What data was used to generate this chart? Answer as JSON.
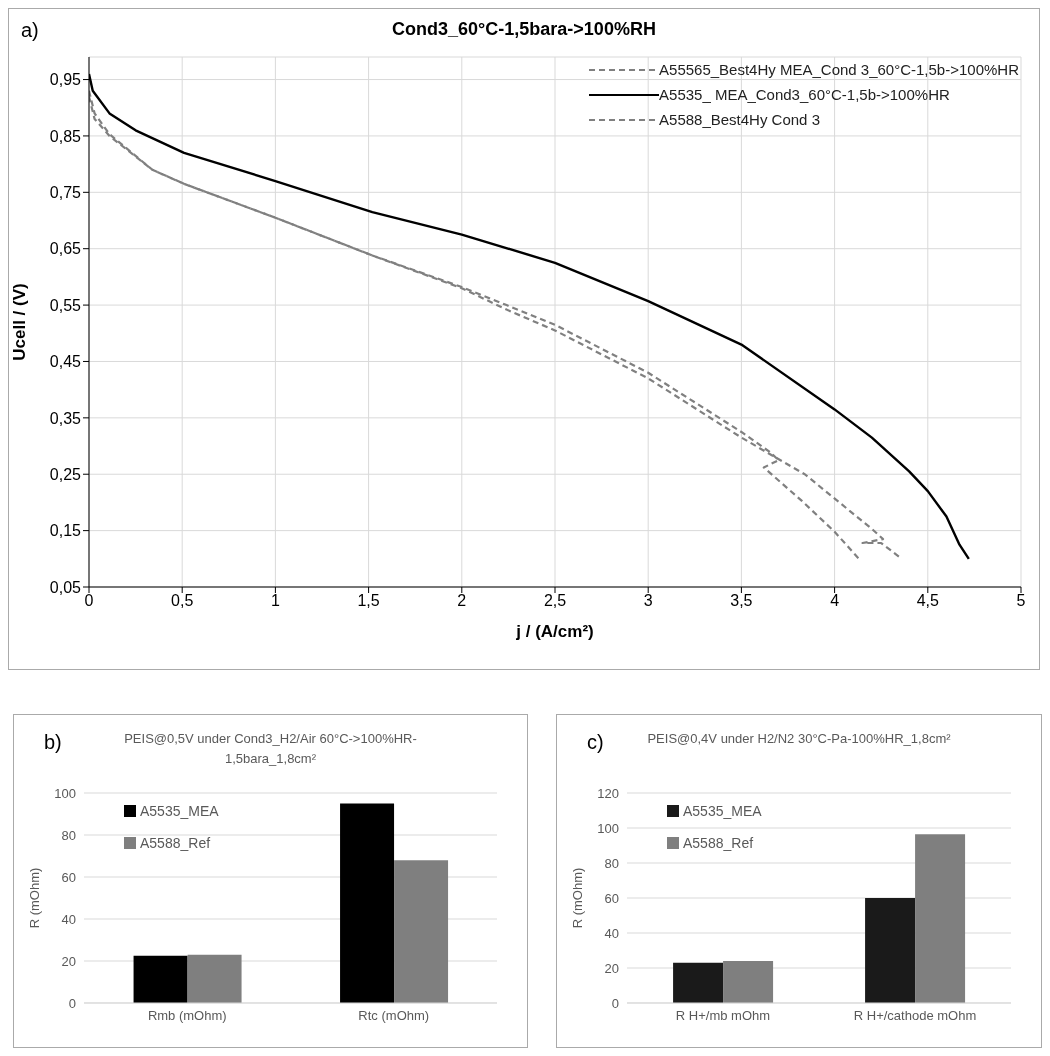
{
  "chart_data": [
    {
      "type": "line",
      "title": "Cond3_60°C-1,5bara->100%RH",
      "xlabel": "j / (A/cm²)",
      "ylabel": "Ucell / (V)",
      "annotations": [
        "a)"
      ],
      "xlim": [
        0,
        5
      ],
      "xticks": [
        0,
        {
          "value": 0.5,
          "label": "0,5"
        },
        1,
        {
          "value": 1.5,
          "label": "1,5"
        },
        2,
        {
          "value": 2.5,
          "label": "2,5"
        },
        3,
        {
          "value": 3.5,
          "label": "3,5"
        },
        4,
        {
          "value": 4.5,
          "label": "4,5"
        },
        5
      ],
      "ylim": [
        0.05,
        0.99
      ],
      "yticks": [
        {
          "value": 0.05,
          "label": "0,05"
        },
        {
          "value": 0.15,
          "label": "0,15"
        },
        {
          "value": 0.25,
          "label": "0,25"
        },
        {
          "value": 0.35,
          "label": "0,35"
        },
        {
          "value": 0.45,
          "label": "0,45"
        },
        {
          "value": 0.55,
          "label": "0,55"
        },
        {
          "value": 0.65,
          "label": "0,65"
        },
        {
          "value": 0.75,
          "label": "0,75"
        },
        {
          "value": 0.85,
          "label": "0,85"
        },
        {
          "value": 0.95,
          "label": "0,95"
        }
      ],
      "grid": true,
      "legend": "top right",
      "series": [
        {
          "name": "A55565_Best4Hy MEA_Cond 3_60°C-1,5b->100%HR",
          "color": "#808080",
          "line_style": "dashed",
          "x": [
            0,
            0.03,
            0.11,
            0.34,
            0.51,
            1.0,
            1.52,
            2.0,
            2.24,
            2.5,
            3.0,
            3.5,
            3.65,
            3.7,
            3.62,
            3.82,
            4.0,
            4.13
          ],
          "values": [
            0.93,
            0.89,
            0.853,
            0.79,
            0.765,
            0.705,
            0.638,
            0.582,
            0.55,
            0.515,
            0.43,
            0.325,
            0.29,
            0.275,
            0.262,
            0.204,
            0.148,
            0.1
          ]
        },
        {
          "name": "A5535_ MEA_Cond3_60°C-1,5b->100%HR",
          "color": "#000000",
          "line_style": "solid",
          "x": [
            0,
            0.02,
            0.11,
            0.25,
            0.51,
            1.0,
            1.52,
            2.0,
            2.5,
            3.0,
            3.5,
            4.0,
            4.2,
            4.4,
            4.5,
            4.6,
            4.67,
            4.72
          ],
          "values": [
            0.96,
            0.93,
            0.89,
            0.86,
            0.82,
            0.77,
            0.715,
            0.675,
            0.625,
            0.557,
            0.48,
            0.365,
            0.315,
            0.255,
            0.22,
            0.175,
            0.125,
            0.1
          ]
        },
        {
          "name": "A5588_Best4Hy Cond 3",
          "color": "#808080",
          "line_style": "dashed",
          "x": [
            0,
            0.03,
            0.11,
            0.34,
            0.51,
            1.0,
            1.52,
            2.0,
            2.24,
            2.5,
            3.0,
            3.5,
            3.84,
            4.2,
            4.26,
            4.15,
            4.25,
            4.36
          ],
          "values": [
            0.92,
            0.88,
            0.85,
            0.79,
            0.765,
            0.705,
            0.638,
            0.58,
            0.542,
            0.505,
            0.42,
            0.315,
            0.25,
            0.153,
            0.135,
            0.128,
            0.128,
            0.1
          ]
        }
      ]
    },
    {
      "type": "bar",
      "title": "PEIS@0,5V under Cond3_H2/Air 60°C->100%HR-1,5bara_1,8cm²",
      "ylabel": "R (mOhm)",
      "annotations": [
        "b)"
      ],
      "categories": [
        "Rmb (mOhm)",
        "Rtc (mOhm)"
      ],
      "ylim": [
        0,
        100
      ],
      "yticks": [
        0,
        20,
        40,
        60,
        80,
        100
      ],
      "grid": "y",
      "legend": "top left",
      "series": [
        {
          "name": "A5535_MEA",
          "color": "#000000",
          "values": [
            22.5,
            95
          ]
        },
        {
          "name": "A5588_Ref",
          "color": "#7f7f7f",
          "values": [
            23,
            68
          ]
        }
      ]
    },
    {
      "type": "bar",
      "title": "PEIS@0,4V under H2/N2 30°C-Pa-100%HR_1,8cm²",
      "ylabel": "R (mOhm)",
      "annotations": [
        "c)"
      ],
      "categories": [
        "R H+/mb mOhm",
        "R H+/cathode mOhm"
      ],
      "ylim": [
        0,
        120
      ],
      "yticks": [
        0,
        20,
        40,
        60,
        80,
        100,
        120
      ],
      "grid": "y",
      "legend": "top left",
      "series": [
        {
          "name": "A5535_MEA",
          "color": "#1a1a1a",
          "values": [
            23,
            60
          ]
        },
        {
          "name": "A5588_Ref",
          "color": "#7f7f7f",
          "values": [
            24,
            96.5
          ]
        }
      ]
    }
  ]
}
